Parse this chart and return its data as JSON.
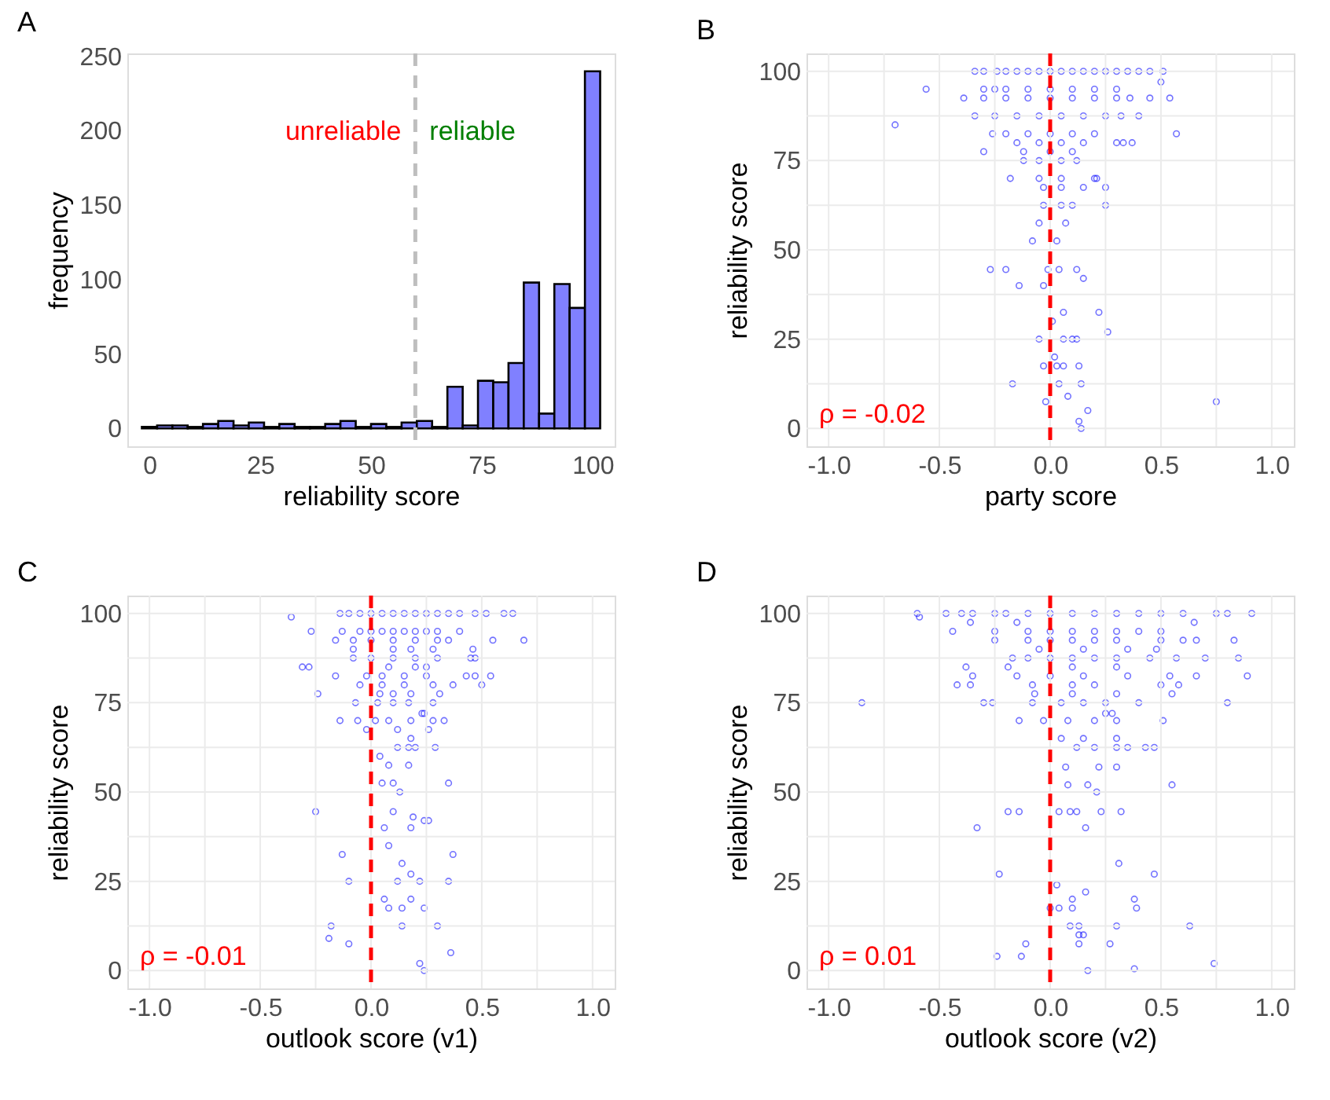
{
  "chart_data": [
    {
      "type": "histogram",
      "title": "A",
      "xlabel": "reliability score",
      "ylabel": "frequency",
      "bins": [
        -1.72,
        1.72,
        5.17,
        8.62,
        12.07,
        15.52,
        18.97,
        22.41,
        25.86,
        29.31,
        32.76,
        36.21,
        39.66,
        43.1,
        46.55,
        50.0,
        53.45,
        56.9,
        60.34,
        63.79,
        67.24,
        70.69,
        74.14,
        77.59,
        81.03,
        84.48,
        87.93,
        91.38,
        94.83,
        98.28,
        101.72
      ],
      "values": [
        1,
        2,
        2,
        1,
        3,
        5,
        2,
        4,
        1,
        3,
        1,
        1,
        3,
        5,
        1,
        3,
        1,
        4,
        5,
        1,
        28,
        2,
        32,
        31,
        44,
        98,
        10,
        97,
        81,
        240
      ],
      "color": "#8080ff",
      "xlim": [
        -5,
        105
      ],
      "xticks": [
        0,
        25,
        50,
        75,
        100
      ],
      "ylim": [
        -12,
        252
      ],
      "yticks": [
        0,
        50,
        100,
        150,
        200,
        250
      ],
      "grid": false,
      "ref_lines": [
        {
          "axis": "x",
          "value": 60,
          "color": "#bebebe",
          "line_style": "dashed"
        }
      ],
      "annotations": [
        "unreliable",
        "reliable"
      ]
    },
    {
      "type": "scatter",
      "title": "B",
      "xlabel": "party score",
      "ylabel": "reliability score",
      "marker": "circle",
      "grid": true,
      "xlim": [
        -1.1,
        1.1
      ],
      "xticks": [
        {
          "value": -1,
          "label": "-1.0"
        },
        {
          "value": -0.75,
          "label": null
        },
        {
          "value": -0.5,
          "label": "-0.5"
        },
        {
          "value": -0.25,
          "label": null
        },
        {
          "value": 0,
          "label": "0.0"
        },
        {
          "value": 0.25,
          "label": null
        },
        {
          "value": 0.5,
          "label": "0.5"
        },
        {
          "value": 0.75,
          "label": null
        },
        {
          "value": 1,
          "label": "1.0"
        }
      ],
      "ylim": [
        -5,
        105
      ],
      "yticks": [
        0,
        {
          "value": 12.5,
          "label": null
        },
        25,
        {
          "value": 37.5,
          "label": null
        },
        50,
        {
          "value": 62.5,
          "label": null
        },
        75,
        {
          "value": 87.5,
          "label": null
        },
        100
      ],
      "ref_lines": [
        {
          "axis": "x",
          "value": 0,
          "color": "#ff0000",
          "line_style": "dashed"
        }
      ],
      "annotations": [
        "ρ = -0.02"
      ],
      "series": [
        {
          "color": "#0000ff",
          "x": [
            -0.56,
            -0.7,
            0.57,
            0.75,
            0.54,
            0.5,
            -0.34,
            -0.3,
            -0.24,
            -0.2,
            -0.15,
            -0.1,
            -0.05,
            0,
            0.05,
            0.1,
            0.15,
            0.2,
            0.25,
            0.3,
            0.35,
            0.4,
            0.45,
            0.51,
            -0.3,
            -0.25,
            -0.2,
            -0.1,
            0,
            0.1,
            0.2,
            0.3,
            -0.39,
            -0.3,
            -0.2,
            -0.1,
            0,
            0.1,
            0.2,
            0.3,
            0.36,
            0.45,
            -0.34,
            -0.25,
            -0.15,
            -0.05,
            0.05,
            0.15,
            0.25,
            0.32,
            0.4,
            -0.26,
            -0.2,
            -0.1,
            0,
            0.1,
            0.2,
            -0.15,
            -0.05,
            0.05,
            0.15,
            0.3,
            0.33,
            0.37,
            -0.3,
            -0.12,
            0,
            0.1,
            -0.12,
            -0.05,
            0.05,
            0.12,
            -0.18,
            -0.05,
            0.05,
            0.2,
            0.21,
            -0.03,
            0.05,
            0.15,
            0.25,
            -0.03,
            0.05,
            0.1,
            0.25,
            -0.05,
            0.07,
            -0.08,
            0.03,
            -0.27,
            -0.2,
            -0.01,
            0.04,
            0.12,
            0.15,
            -0.14,
            -0.03,
            0.06,
            0.22,
            0.01,
            0.26,
            -0.05,
            0.06,
            0.1,
            0.12,
            0.02,
            -0.03,
            0.03,
            0.06,
            0.13,
            -0.17,
            0.04,
            0.14,
            0.08,
            -0.02,
            0.17,
            0.13,
            0.14
          ],
          "values": [
            95,
            85,
            82.5,
            7.5,
            92.5,
            97,
            100,
            100,
            100,
            100,
            100,
            100,
            100,
            100,
            100,
            100,
            100,
            100,
            100,
            100,
            100,
            100,
            100,
            100,
            95,
            95,
            95,
            95,
            95,
            95,
            95,
            95,
            92.5,
            92.5,
            92.5,
            92.5,
            92.5,
            92.5,
            92.5,
            92.5,
            92.5,
            92.5,
            87.5,
            87.5,
            87.5,
            87.5,
            87.5,
            87.5,
            87.5,
            87.5,
            87.5,
            82.5,
            82.5,
            82.5,
            82.5,
            82.5,
            82.5,
            80,
            80,
            80,
            80,
            80,
            80,
            80,
            77.5,
            77.5,
            77.5,
            77.5,
            75,
            75,
            75,
            75,
            70,
            70,
            70,
            70,
            70,
            67.5,
            67.5,
            67.5,
            67.5,
            62.5,
            62.5,
            62.5,
            62.5,
            57.5,
            57.5,
            52.5,
            52.5,
            44.5,
            44.5,
            44.5,
            44.5,
            44.5,
            42,
            40,
            40,
            32.5,
            32.5,
            30,
            27,
            25,
            25,
            25,
            25,
            20,
            17.5,
            17.5,
            17.5,
            17.5,
            12.5,
            12.5,
            12.5,
            9,
            7.5,
            5,
            2,
            0
          ]
        }
      ]
    },
    {
      "type": "scatter",
      "title": "C",
      "xlabel": "outlook score (v1)",
      "ylabel": "reliability score",
      "marker": "circle",
      "grid": true,
      "xlim": [
        -1.1,
        1.1
      ],
      "xticks": [
        {
          "value": -1,
          "label": "-1.0"
        },
        {
          "value": -0.75,
          "label": null
        },
        {
          "value": -0.5,
          "label": "-0.5"
        },
        {
          "value": -0.25,
          "label": null
        },
        {
          "value": 0,
          "label": "0.0"
        },
        {
          "value": 0.25,
          "label": null
        },
        {
          "value": 0.5,
          "label": "0.5"
        },
        {
          "value": 0.75,
          "label": null
        },
        {
          "value": 1,
          "label": "1.0"
        }
      ],
      "ylim": [
        -5,
        105
      ],
      "yticks": [
        0,
        {
          "value": 12.5,
          "label": null
        },
        25,
        {
          "value": 37.5,
          "label": null
        },
        50,
        {
          "value": 62.5,
          "label": null
        },
        75,
        {
          "value": 87.5,
          "label": null
        },
        100
      ],
      "ref_lines": [
        {
          "axis": "x",
          "value": 0,
          "color": "#ff0000",
          "line_style": "dashed"
        }
      ],
      "annotations": [
        "ρ = -0.01"
      ],
      "series": [
        {
          "color": "#0000ff",
          "x": [
            -0.36,
            -0.27,
            -0.14,
            -0.1,
            -0.05,
            0,
            0.05,
            0.1,
            0.15,
            0.2,
            0.25,
            0.3,
            0.35,
            0.4,
            0.47,
            0.52,
            0.6,
            0.64,
            -0.13,
            -0.05,
            0,
            0.05,
            0.1,
            0.15,
            0.2,
            0.25,
            0.3,
            0.4,
            -0.16,
            -0.08,
            0,
            0.1,
            0.2,
            0.3,
            0.35,
            0.55,
            0.69,
            -0.08,
            0.1,
            0.18,
            0.28,
            0.46,
            -0.08,
            0,
            0.1,
            0.2,
            0.3,
            0.45,
            0.47,
            -0.31,
            -0.28,
            0.08,
            0.2,
            0.25,
            -0.16,
            -0.02,
            0.05,
            0.15,
            0.25,
            0.43,
            0.47,
            0.54,
            -0.05,
            0.05,
            0.15,
            0.28,
            0.37,
            0.5,
            -0.24,
            0.04,
            0.1,
            0.18,
            0.31,
            -0.07,
            0.03,
            0.1,
            0.17,
            0.28,
            0.23,
            0.24,
            -0.14,
            -0.06,
            0.02,
            0.08,
            0.18,
            0.28,
            0.33,
            -0.02,
            0.12,
            0.26,
            0.18,
            0.12,
            0.17,
            0.2,
            0.29,
            0.04,
            0.08,
            0.17,
            0.05,
            0.1,
            0.35,
            0.13,
            -0.25,
            0.1,
            0.19,
            0.24,
            0.26,
            0.06,
            0.18,
            0.08,
            -0.13,
            0.37,
            0.14,
            0.18,
            -0.1,
            0.12,
            0.22,
            0.35,
            0.06,
            0.18,
            0.08,
            0.14,
            0.24,
            -0.18,
            0.14,
            0.3,
            -0.19,
            -0.1,
            0.36,
            0.22,
            0.24
          ],
          "values": [
            99,
            95,
            100,
            100,
            100,
            100,
            100,
            100,
            100,
            100,
            100,
            100,
            100,
            100,
            100,
            100,
            100,
            100,
            95,
            95,
            95,
            95,
            95,
            95,
            95,
            95,
            95,
            95,
            92.5,
            92.5,
            92.5,
            92.5,
            92.5,
            92.5,
            92.5,
            92.5,
            92.5,
            90,
            90,
            90,
            90,
            90,
            87.5,
            87.5,
            87.5,
            87.5,
            87.5,
            87.5,
            87.5,
            85,
            85,
            85,
            85,
            85,
            82.5,
            82.5,
            82.5,
            82.5,
            82.5,
            82.5,
            82.5,
            82.5,
            80,
            80,
            80,
            80,
            80,
            80,
            77.5,
            77.5,
            77.5,
            77.5,
            77.5,
            75,
            75,
            75,
            75,
            75,
            72,
            72,
            70,
            70,
            70,
            70,
            70,
            70,
            70,
            67.5,
            67.5,
            67.5,
            65,
            62.5,
            62.5,
            62.5,
            62.5,
            60,
            57.5,
            57.5,
            52.5,
            52.5,
            52.5,
            50,
            44.5,
            44.5,
            43,
            42,
            42,
            40,
            40,
            35,
            32.5,
            32.5,
            30,
            27,
            25,
            25,
            25,
            25,
            20,
            20,
            17.5,
            17.5,
            17.5,
            12.5,
            12.5,
            12.5,
            9,
            7.5,
            5,
            2,
            0
          ]
        }
      ]
    },
    {
      "type": "scatter",
      "title": "D",
      "xlabel": "outlook score (v2)",
      "ylabel": "reliability score",
      "marker": "circle",
      "grid": true,
      "xlim": [
        -1.1,
        1.1
      ],
      "xticks": [
        {
          "value": -1,
          "label": "-1.0"
        },
        {
          "value": -0.75,
          "label": null
        },
        {
          "value": -0.5,
          "label": "-0.5"
        },
        {
          "value": -0.25,
          "label": null
        },
        {
          "value": 0,
          "label": "0.0"
        },
        {
          "value": 0.25,
          "label": null
        },
        {
          "value": 0.5,
          "label": "0.5"
        },
        {
          "value": 0.75,
          "label": null
        },
        {
          "value": 1,
          "label": "1.0"
        }
      ],
      "ylim": [
        -5,
        105
      ],
      "yticks": [
        0,
        {
          "value": 12.5,
          "label": null
        },
        25,
        {
          "value": 37.5,
          "label": null
        },
        50,
        {
          "value": 62.5,
          "label": null
        },
        75,
        {
          "value": 87.5,
          "label": null
        },
        100
      ],
      "ref_lines": [
        {
          "axis": "x",
          "value": 0,
          "color": "#ff0000",
          "line_style": "dashed"
        }
      ],
      "annotations": [
        "ρ = 0.01"
      ],
      "series": [
        {
          "color": "#0000ff",
          "x": [
            -0.85,
            -0.6,
            -0.59,
            -0.47,
            -0.4,
            -0.35,
            -0.25,
            -0.2,
            -0.1,
            0,
            0.1,
            0.2,
            0.3,
            0.4,
            0.5,
            0.6,
            0.75,
            0.8,
            0.91,
            -0.36,
            -0.15,
            0.65,
            -0.44,
            -0.25,
            -0.1,
            0,
            0.1,
            0.2,
            0.3,
            0.4,
            0.5,
            -0.25,
            -0.1,
            0,
            0.1,
            0.2,
            0.3,
            0.5,
            0.6,
            0.66,
            0.83,
            -0.05,
            0.15,
            0.35,
            0.48,
            -0.17,
            -0.1,
            0,
            0.1,
            0.2,
            0.3,
            0.45,
            0.57,
            0.7,
            0.85,
            -0.38,
            -0.19,
            0.1,
            0.3,
            -0.35,
            -0.15,
            0,
            0.15,
            0.35,
            0.54,
            0.66,
            0.89,
            -0.42,
            -0.36,
            -0.08,
            0.1,
            0.2,
            0.5,
            0.58,
            -0.07,
            0.1,
            0.3,
            0.55,
            -0.3,
            -0.26,
            -0.08,
            0.05,
            0.15,
            0.25,
            0.4,
            0.8,
            0.25,
            0.28,
            -0.14,
            -0.03,
            0.08,
            0.2,
            0.3,
            0.51,
            0.05,
            0.15,
            0.3,
            0.12,
            0.2,
            0.3,
            0.35,
            0.43,
            0.47,
            0.07,
            0.22,
            0.3,
            0.08,
            0.17,
            0.55,
            0.21,
            -0.19,
            -0.14,
            0.04,
            0.09,
            0.12,
            0.23,
            0.32,
            -0.33,
            0.16,
            0.31,
            -0.23,
            0.47,
            0.03,
            0.16,
            0.1,
            0.38,
            0,
            0.04,
            0.1,
            0.39,
            0.09,
            0.13,
            0.3,
            0.63,
            0.13,
            0.15,
            -0.11,
            0.13,
            0.27,
            -0.24,
            -0.13,
            0.74,
            0.38,
            0.17
          ],
          "values": [
            75,
            100,
            99,
            100,
            100,
            100,
            100,
            100,
            100,
            100,
            100,
            100,
            100,
            100,
            100,
            100,
            100,
            100,
            100,
            97.5,
            97.5,
            97.5,
            95,
            95,
            95,
            95,
            95,
            95,
            95,
            95,
            95,
            92.5,
            92.5,
            92.5,
            92.5,
            92.5,
            92.5,
            92.5,
            92.5,
            92.5,
            92.5,
            90,
            90,
            90,
            90,
            87.5,
            87.5,
            87.5,
            87.5,
            87.5,
            87.5,
            87.5,
            87.5,
            87.5,
            87.5,
            85,
            85,
            85,
            85,
            82.5,
            82.5,
            82.5,
            82.5,
            82.5,
            82.5,
            82.5,
            82.5,
            80,
            80,
            80,
            80,
            80,
            80,
            80,
            77.5,
            77.5,
            77.5,
            77.5,
            75,
            75,
            75,
            75,
            75,
            75,
            75,
            75,
            72,
            72,
            70,
            70,
            70,
            70,
            70,
            70,
            65,
            65,
            65,
            62.5,
            62.5,
            62.5,
            62.5,
            62.5,
            62.5,
            57,
            57,
            57,
            52,
            52,
            52,
            50,
            44.5,
            44.5,
            44.5,
            44.5,
            44.5,
            44.5,
            44.5,
            40,
            40,
            30,
            27,
            27,
            24,
            22,
            20,
            20,
            17.5,
            17.5,
            17.5,
            17.5,
            12.5,
            12.5,
            12.5,
            12.5,
            10,
            10,
            7.5,
            7.5,
            7.5,
            4,
            4,
            2,
            0.5,
            0
          ]
        }
      ]
    }
  ]
}
